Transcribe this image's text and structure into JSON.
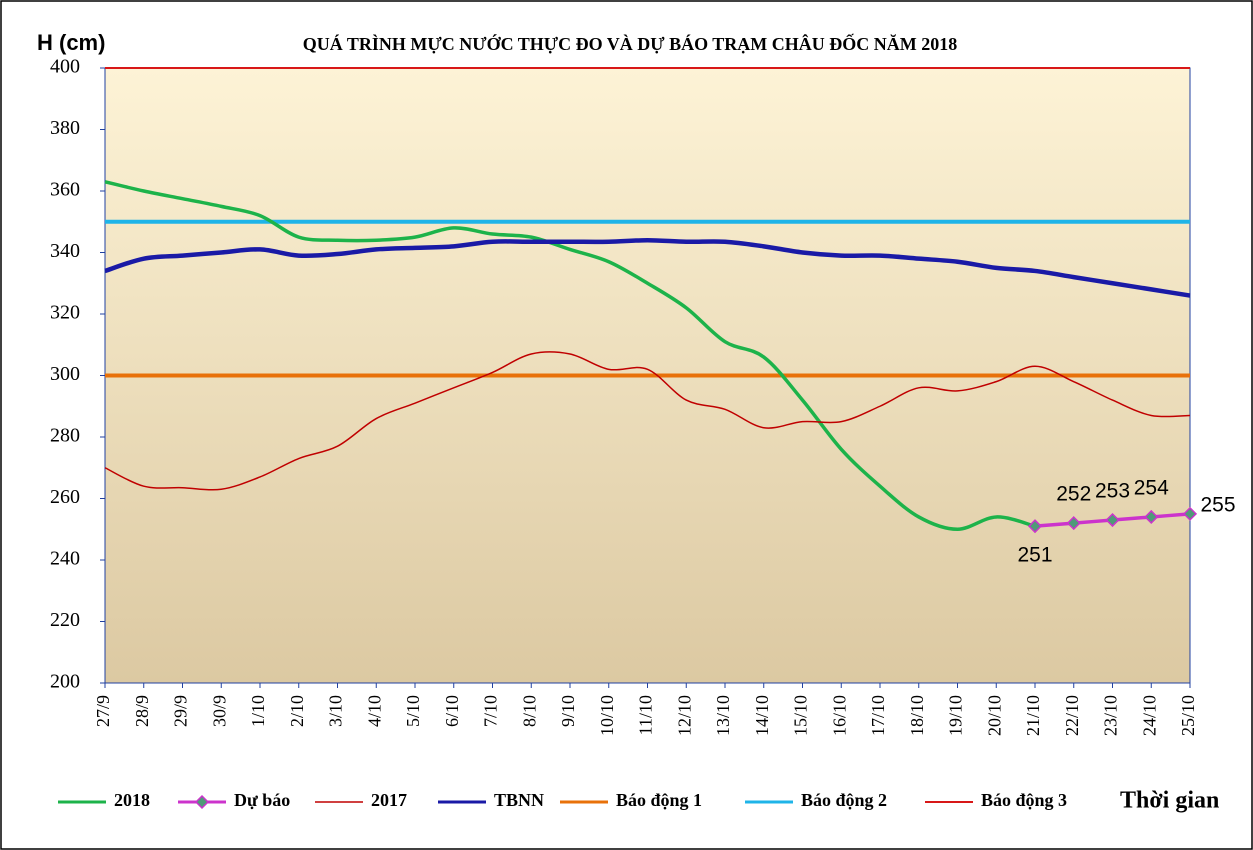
{
  "chart_data": {
    "type": "line",
    "title": "QUÁ TRÌNH MỰC NƯỚC THỰC ĐO VÀ DỰ BÁO TRẠM CHÂU ĐỐC NĂM 2018",
    "y_label": "H (cm)",
    "x_label": "Thời gian",
    "categories": [
      "27/9",
      "28/9",
      "29/9",
      "30/9",
      "1/10",
      "2/10",
      "3/10",
      "4/10",
      "5/10",
      "6/10",
      "7/10",
      "8/10",
      "9/10",
      "10/10",
      "11/10",
      "12/10",
      "13/10",
      "14/10",
      "15/10",
      "16/10",
      "17/10",
      "18/10",
      "19/10",
      "20/10",
      "21/10",
      "22/10",
      "23/10",
      "24/10",
      "25/10"
    ],
    "ylim": [
      200,
      400
    ],
    "yticks": [
      200,
      220,
      240,
      260,
      280,
      300,
      320,
      340,
      360,
      380,
      400
    ],
    "series": [
      {
        "name": "2018",
        "color": "#1db34a",
        "values": [
          363,
          360,
          357.5,
          355,
          352,
          345,
          344,
          344,
          345,
          348,
          346,
          345,
          341,
          337,
          330,
          322,
          311,
          306,
          292,
          276,
          264,
          254,
          250,
          254,
          251,
          null,
          null,
          null,
          null
        ]
      },
      {
        "name": "Dự báo",
        "color": "#cc33cc",
        "marker_color": "#4f9a78",
        "values": [
          null,
          null,
          null,
          null,
          null,
          null,
          null,
          null,
          null,
          null,
          null,
          null,
          null,
          null,
          null,
          null,
          null,
          null,
          null,
          null,
          null,
          null,
          null,
          null,
          251,
          252,
          253,
          254,
          255
        ]
      },
      {
        "name": "2017",
        "color": "#c00000",
        "values": [
          270,
          264,
          263.5,
          263,
          267,
          273,
          277,
          286,
          291,
          296,
          301,
          307,
          307,
          302,
          302,
          292,
          289,
          283,
          285,
          285,
          290,
          296,
          295,
          298,
          303,
          298,
          292,
          287,
          287
        ]
      },
      {
        "name": "TBNN",
        "color": "#1a1aa6",
        "values": [
          334,
          338,
          339,
          340,
          341,
          339,
          339.5,
          341,
          341.5,
          342,
          343.5,
          343.5,
          343.5,
          343.5,
          344,
          343.5,
          343.5,
          342,
          340,
          339,
          339,
          338,
          337,
          335,
          334,
          332,
          330,
          328,
          326
        ]
      }
    ],
    "alarms": [
      {
        "name": "Báo động 1",
        "color": "#e8710a",
        "value": 300
      },
      {
        "name": "Báo động 2",
        "color": "#1fb4e8",
        "value": 350
      },
      {
        "name": "Báo động 3",
        "color": "#d81818",
        "value": 400
      }
    ]
  }
}
